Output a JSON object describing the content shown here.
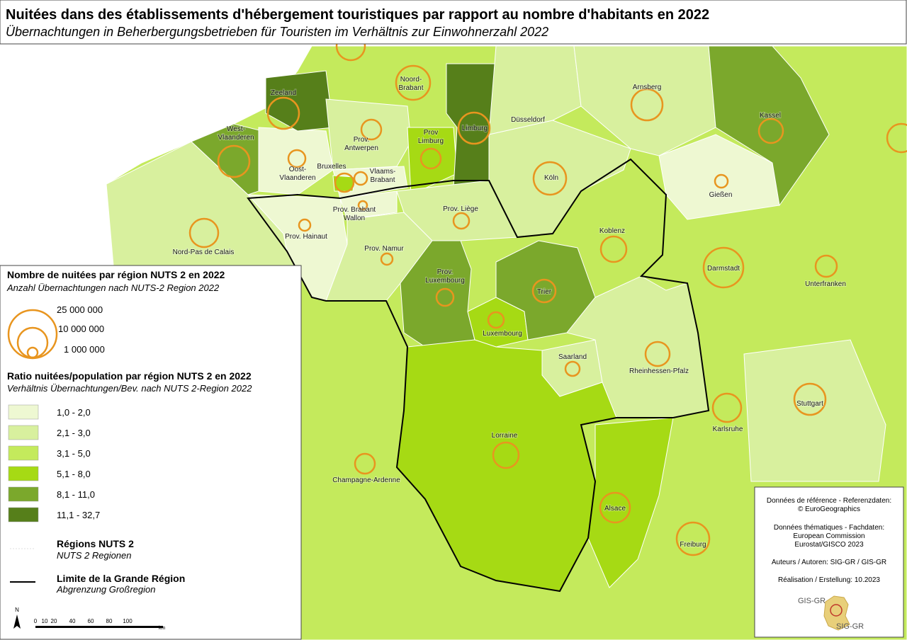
{
  "header": {
    "title": "Nuitées dans des établissements d'hébergement touristiques par rapport au nombre d'habitants en 2022",
    "subtitle": "Übernachtungen in Beherbergungsbetrieben für Touristen im Verhältnis zur Einwohnerzahl 2022"
  },
  "regions": [
    {
      "lines": [
        "Zeeland"
      ]
    },
    {
      "lines": [
        "West-",
        "Vlaanderen"
      ]
    },
    {
      "lines": [
        "Oost-",
        "Vlaanderen"
      ]
    },
    {
      "lines": [
        "Prov.",
        "Antwerpen"
      ]
    },
    {
      "lines": [
        "Bruxelles"
      ]
    },
    {
      "lines": [
        "Vlaams-",
        "Brabant"
      ]
    },
    {
      "lines": [
        "Noord-",
        "Brabant"
      ]
    },
    {
      "lines": [
        "Prov",
        "Limburg"
      ]
    },
    {
      "lines": [
        "Limburg"
      ]
    },
    {
      "lines": [
        "Düsseldorf"
      ]
    },
    {
      "lines": [
        "Arnsberg"
      ]
    },
    {
      "lines": [
        "Kassel"
      ]
    },
    {
      "lines": [
        "Köln"
      ]
    },
    {
      "lines": [
        "Gießen"
      ]
    },
    {
      "lines": [
        "Nord-Pas de Calais"
      ]
    },
    {
      "lines": [
        "Prov. Hainaut"
      ]
    },
    {
      "lines": [
        "Prov. Brabant",
        "Wallon"
      ]
    },
    {
      "lines": [
        "Prov. Liège"
      ]
    },
    {
      "lines": [
        "Prov. Namur"
      ]
    },
    {
      "lines": [
        "Prov.",
        "Luxembourg"
      ]
    },
    {
      "lines": [
        "Trier"
      ]
    },
    {
      "lines": [
        "Koblenz"
      ]
    },
    {
      "lines": [
        "Darmstadt"
      ]
    },
    {
      "lines": [
        "Unterfranken"
      ]
    },
    {
      "lines": [
        "Luxembourg"
      ]
    },
    {
      "lines": [
        "Saarland"
      ]
    },
    {
      "lines": [
        "Rheinhessen-Pfalz"
      ]
    },
    {
      "lines": [
        "Stuttgart"
      ]
    },
    {
      "lines": [
        "Karlsruhe"
      ]
    },
    {
      "lines": [
        "Lorraine"
      ]
    },
    {
      "lines": [
        "Champagne-Ardenne"
      ]
    },
    {
      "lines": [
        "Alsace"
      ]
    },
    {
      "lines": [
        "Freiburg"
      ]
    }
  ],
  "legend": {
    "circles_title": "Nombre de nuitées par région NUTS 2 en 2022",
    "circles_subtitle": "Anzahl Übernachtungen nach NUTS-2 Region 2022",
    "circle_sizes": [
      "25 000 000",
      "10 000 000",
      "1 000 000"
    ],
    "ratio_title": "Ratio nuitées/population par région NUTS 2 en 2022",
    "ratio_subtitle": "Verhältnis Übernachtungen/Bev. nach NUTS 2-Region 2022",
    "classes": [
      {
        "label": "1,0 - 2,0",
        "color": "#eef8d2"
      },
      {
        "label": "2,1 - 3,0",
        "color": "#d8f09e"
      },
      {
        "label": "3,1 - 5,0",
        "color": "#c4ea5c"
      },
      {
        "label": "5,1 - 8,0",
        "color": "#a6da14"
      },
      {
        "label": "8,1 - 11,0",
        "color": "#7ba82c"
      },
      {
        "label": "11,1 - 32,7",
        "color": "#567f1a"
      }
    ],
    "nuts_title": "Régions NUTS 2",
    "nuts_subtitle": "NUTS 2 Regionen",
    "border_title": "Limite de la Grande Région",
    "border_subtitle": "Abgrenzung Großregion"
  },
  "scale": {
    "north": "N",
    "ticks": [
      "0",
      "10",
      "20",
      "40",
      "60",
      "80",
      "100"
    ],
    "unit": "km"
  },
  "credits": [
    "Données de référence - Referenzdaten:",
    "© EuroGeographics",
    "Données thématiques - Fachdaten:",
    "European Commission",
    "Eurostat/GISCO 2023",
    "Auteurs / Autoren: SIG-GR / GIS-GR",
    "Réalisation / Erstellung: 10.2023",
    "GIS-GR",
    "SIG-GR"
  ]
}
